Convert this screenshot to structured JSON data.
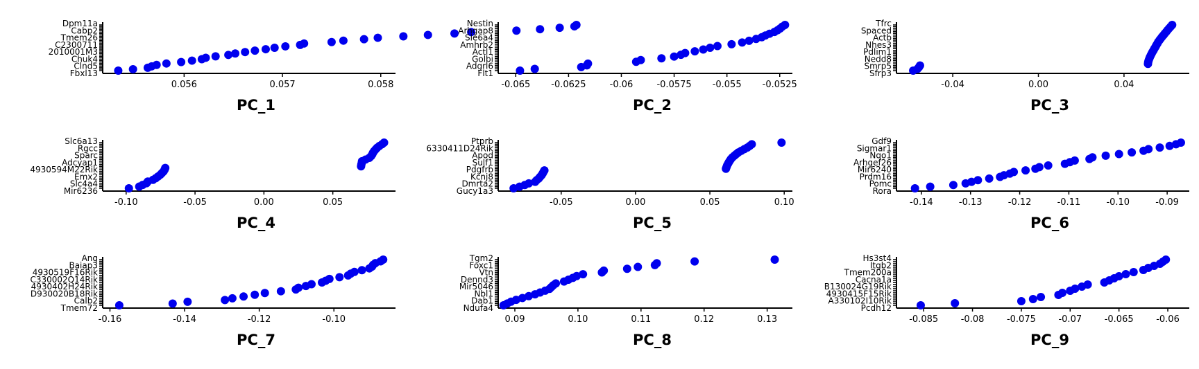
{
  "point_color": "#0000ee",
  "chart_data": [
    {
      "type": "scatter",
      "xlabel": "PC_1",
      "xticks": [
        0.056,
        0.057,
        0.058
      ],
      "xlim": [
        0.0552,
        0.05815
      ],
      "gene_labels": [
        "Dpm11a",
        "Cabp2",
        "Tmem26",
        "C2300711",
        "2010001M3",
        "Chuk4",
        "Clnd5",
        "Fbxl13"
      ],
      "values": [
        0.05533,
        0.05548,
        0.05563,
        0.05567,
        0.05572,
        0.05582,
        0.05597,
        0.05608,
        0.05618,
        0.05622,
        0.05632,
        0.05645,
        0.05652,
        0.05662,
        0.05672,
        0.05683,
        0.05692,
        0.05703,
        0.05718,
        0.05722,
        0.0575,
        0.05762,
        0.05783,
        0.05797,
        0.05823,
        0.05848,
        0.05875,
        0.05892,
        0.05938,
        0.05962,
        0.05982,
        0.05997,
        0.05999
      ]
    },
    {
      "type": "scatter",
      "xlabel": "PC_2",
      "xticks": [
        -0.065,
        -0.0625,
        -0.06,
        -0.0575,
        -0.055,
        -0.0525
      ],
      "xlim": [
        -0.0657,
        -0.0519
      ],
      "gene_labels": [
        "Nestin",
        "Arhgap8",
        "Sle6a4",
        "Amhrb2",
        "Actl1",
        "Golbi",
        "Adgrl6",
        "Flt1"
      ],
      "values": [
        -0.0648,
        -0.0641,
        -0.0619,
        -0.06163,
        -0.06158,
        -0.0593,
        -0.05908,
        -0.0581,
        -0.0575,
        -0.05718,
        -0.05698,
        -0.05652,
        -0.05612,
        -0.0558,
        -0.05545,
        -0.05478,
        -0.05428,
        -0.05395,
        -0.05362,
        -0.05335,
        -0.05318,
        -0.05298,
        -0.05275,
        -0.0526,
        -0.05248,
        -0.05238,
        -0.05225
      ]
    },
    {
      "type": "scatter",
      "xlabel": "PC_3",
      "xticks": [
        -0.04,
        0.0,
        0.04
      ],
      "xlim": [
        -0.065,
        0.0705
      ],
      "gene_labels": [
        "Tfrc",
        "Spaced",
        "Actb",
        "Nhes3",
        "Pdlim1",
        "Nedd8",
        "Smrp5",
        "Sfrp3"
      ],
      "values": [
        -0.0585,
        -0.0565,
        -0.0558,
        -0.0553,
        0.0512,
        0.0513,
        0.0515,
        0.0518,
        0.0521,
        0.0525,
        0.0529,
        0.0533,
        0.0538,
        0.0542,
        0.0547,
        0.0551,
        0.0556,
        0.056,
        0.0566,
        0.0572,
        0.0578,
        0.0585,
        0.0591,
        0.0598,
        0.0604,
        0.0611,
        0.0618,
        0.0625
      ]
    },
    {
      "type": "scatter",
      "xlabel": "PC_4",
      "xticks": [
        -0.1,
        -0.05,
        0.0,
        0.05
      ],
      "xlim": [
        -0.115,
        0.0955
      ],
      "gene_labels": [
        "Slc6a13",
        "Rgcc",
        "Sparc",
        "Adcyap1",
        "4930594M22Rik",
        "Emx2",
        "Slc4a4",
        "Mir6236"
      ],
      "values": [
        -0.098,
        -0.0905,
        -0.088,
        -0.0852,
        -0.0843,
        -0.0805,
        -0.0785,
        -0.0768,
        -0.0752,
        -0.074,
        -0.0728,
        -0.0721,
        -0.0716,
        0.0705,
        0.0707,
        0.071,
        0.0712,
        0.0738,
        0.0765,
        0.0778,
        0.0786,
        0.0792,
        0.08,
        0.0811,
        0.0822,
        0.0838,
        0.0857,
        0.0872
      ]
    },
    {
      "type": "scatter",
      "xlabel": "PC_5",
      "xticks": [
        -0.05,
        0.0,
        0.05,
        0.1
      ],
      "xlim": [
        -0.0905,
        0.1055
      ],
      "gene_labels": [
        "Ptprb",
        "6330411D24Rik",
        "Apod",
        "Sulf1",
        "Pdgfrb",
        "Kcnj8",
        "Dmrta2",
        "Gucy1a3"
      ],
      "values": [
        -0.082,
        -0.078,
        -0.0745,
        -0.0718,
        -0.0675,
        -0.0665,
        -0.0651,
        -0.0642,
        -0.0632,
        -0.0625,
        -0.0619,
        -0.0613,
        0.0608,
        0.0612,
        0.0616,
        0.0622,
        0.0628,
        0.0635,
        0.0642,
        0.0652,
        0.0665,
        0.0678,
        0.0692,
        0.0712,
        0.0732,
        0.0752,
        0.0768,
        0.0782,
        0.0982
      ]
    },
    {
      "type": "scatter",
      "xlabel": "PC_6",
      "xticks": [
        -0.14,
        -0.13,
        -0.12,
        -0.11,
        -0.1,
        -0.09
      ],
      "xlim": [
        -0.1445,
        -0.0855
      ],
      "gene_labels": [
        "Gdf9",
        "Sigmar1",
        "Nqo1",
        "Arhgef26",
        "Mir6240",
        "Prdm16",
        "Pomc",
        "Rora"
      ],
      "values": [
        -0.1413,
        -0.1382,
        -0.1335,
        -0.131,
        -0.1298,
        -0.1285,
        -0.1262,
        -0.124,
        -0.1232,
        -0.122,
        -0.1212,
        -0.1188,
        -0.1168,
        -0.116,
        -0.1142,
        -0.1108,
        -0.1098,
        -0.1088,
        -0.1058,
        -0.1052,
        -0.1025,
        -0.0998,
        -0.0972,
        -0.0948,
        -0.0938,
        -0.0915,
        -0.0895,
        -0.0882,
        -0.0872
      ]
    },
    {
      "type": "scatter",
      "xlabel": "PC_7",
      "xticks": [
        -0.16,
        -0.14,
        -0.12,
        -0.1
      ],
      "xlim": [
        -0.1612,
        -0.0835
      ],
      "gene_labels": [
        "Ang",
        "Baiap3",
        "4930519F16Rik",
        "C330002Q14Rik",
        "4930402H24Rik",
        "D930020B18Rik",
        "Calb2",
        "Tmem72"
      ],
      "values": [
        -0.1575,
        -0.1432,
        -0.1392,
        -0.1292,
        -0.1272,
        -0.1242,
        -0.1212,
        -0.1185,
        -0.1142,
        -0.1102,
        -0.1095,
        -0.1075,
        -0.106,
        -0.1032,
        -0.1022,
        -0.1012,
        -0.0985,
        -0.0962,
        -0.0955,
        -0.0945,
        -0.0925,
        -0.0905,
        -0.0898,
        -0.0895,
        -0.0889,
        -0.0875,
        -0.0868
      ]
    },
    {
      "type": "scatter",
      "xlabel": "PC_8",
      "xticks": [
        0.09,
        0.1,
        0.11,
        0.12,
        0.13
      ],
      "xlim": [
        0.0878,
        0.134
      ],
      "gene_labels": [
        "Tgm2",
        "Foxc1",
        "Vtn",
        "Dennd3",
        "Mir5046",
        "Nbl1",
        "Dab1",
        "Ndufa4"
      ],
      "values": [
        0.0882,
        0.0888,
        0.0894,
        0.0902,
        0.0912,
        0.0922,
        0.0932,
        0.094,
        0.0948,
        0.0955,
        0.0958,
        0.0961,
        0.0965,
        0.0978,
        0.0985,
        0.0992,
        0.0998,
        0.1008,
        0.1038,
        0.1041,
        0.1078,
        0.1095,
        0.1122,
        0.1125,
        0.1185,
        0.1312
      ]
    },
    {
      "type": "scatter",
      "xlabel": "PC_9",
      "xticks": [
        -0.085,
        -0.08,
        -0.075,
        -0.07,
        -0.065,
        -0.06
      ],
      "xlim": [
        -0.0875,
        -0.0578
      ],
      "gene_labels": [
        "Hs3st4",
        "Itgb2",
        "Tmem200a",
        "Cacna1a",
        "B130024G19Rik",
        "4930415F15Rik",
        "A330102I10Rik",
        "Pcdh12"
      ],
      "values": [
        -0.0853,
        -0.0818,
        -0.075,
        -0.0738,
        -0.073,
        -0.0712,
        -0.0708,
        -0.07,
        -0.0695,
        -0.0688,
        -0.0682,
        -0.0665,
        -0.066,
        -0.0655,
        -0.065,
        -0.0643,
        -0.0635,
        -0.0625,
        -0.062,
        -0.0614,
        -0.0608,
        -0.0605,
        -0.0602
      ]
    }
  ]
}
